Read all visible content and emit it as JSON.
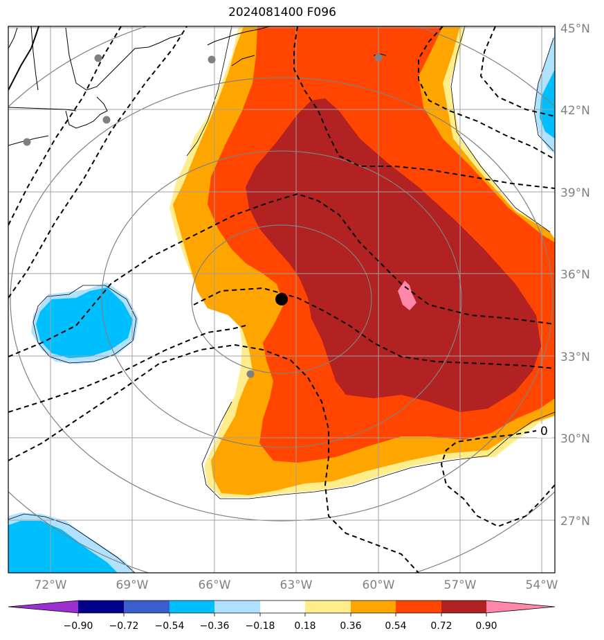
{
  "title": "2024081400 F096",
  "lat_labels": [
    "45°N",
    "42°N",
    "39°N",
    "36°N",
    "33°N",
    "30°N",
    "27°N"
  ],
  "lon_labels": [
    "72°W",
    "69°W",
    "66°W",
    "63°W",
    "60°W",
    "57°W",
    "54°W"
  ],
  "colorbar": {
    "ticks": [
      "−0.90",
      "−0.72",
      "−0.54",
      "−0.36",
      "−0.18",
      "0.18",
      "0.36",
      "0.54",
      "0.72",
      "0.90"
    ],
    "colors": [
      "#9b30d0",
      "#00008b",
      "#3a5fcd",
      "#00bfff",
      "#b0e2ff",
      "#ffffff",
      "#ffec8b",
      "#ffa500",
      "#ff4500",
      "#b22222",
      "#ff88aa"
    ]
  },
  "contour_label": "0",
  "storm_center": {
    "lat": 35.1,
    "lon": -63.6
  },
  "colors": {
    "gt_090": "#ff88aa",
    "072_090": "#b22222",
    "054_072": "#ff4500",
    "036_054": "#ffa500",
    "018_036": "#ffec8b",
    "neg_036_054": "#00bfff",
    "neg_018_036": "#b0e2ff",
    "grid": "#a0a0a0",
    "rings": "#808080"
  }
}
